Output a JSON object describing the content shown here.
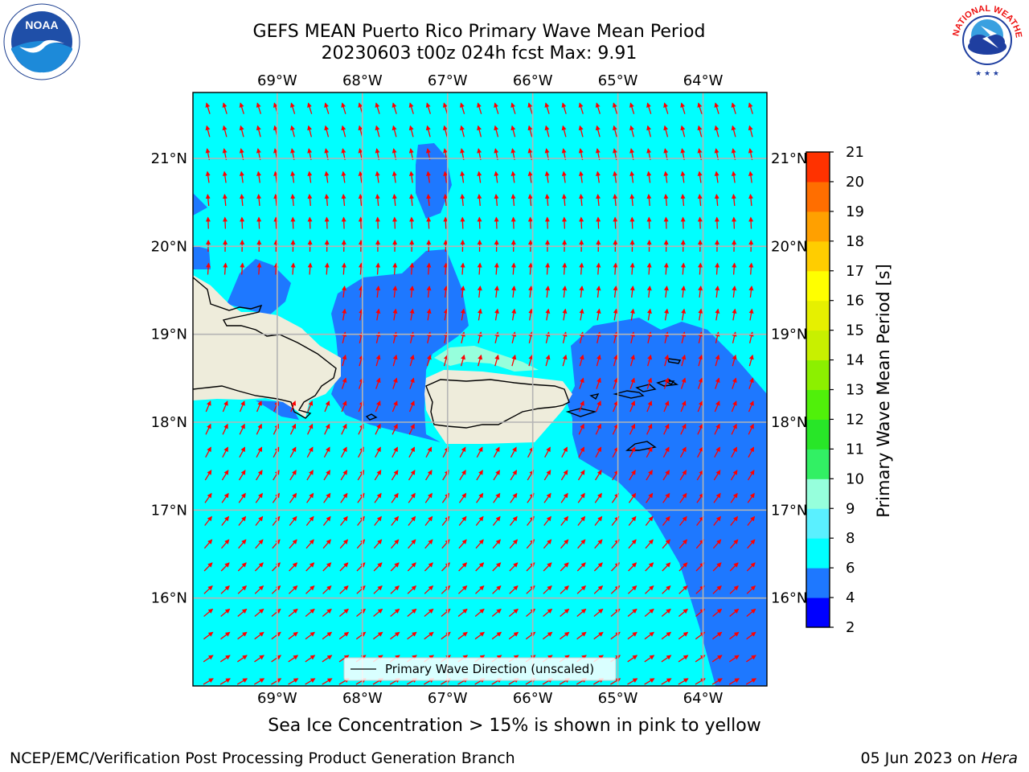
{
  "title": {
    "line1": "GEFS MEAN Puerto Rico Primary Wave Mean Period",
    "line2": "20230603 t00z 024h fcst   Max: 9.91"
  },
  "axes": {
    "lon_labels": [
      "69°W",
      "68°W",
      "67°W",
      "66°W",
      "65°W",
      "64°W"
    ],
    "lat_labels": [
      "21°N",
      "20°N",
      "19°N",
      "18°N",
      "17°N",
      "16°N"
    ],
    "lon_values": [
      -69,
      -68,
      -67,
      -66,
      -65,
      -64
    ],
    "lat_values": [
      21,
      20,
      19,
      18,
      17,
      16
    ],
    "lon_range": [
      -69.99,
      -63.25
    ],
    "lat_range": [
      15.0,
      21.75
    ]
  },
  "legend": {
    "label": "Primary Wave Direction (unscaled)"
  },
  "colorbar": {
    "label": "Primary Wave Mean Period [s]",
    "ticks": [
      "2",
      "4",
      "6",
      "8",
      "9",
      "10",
      "11",
      "12",
      "13",
      "14",
      "15",
      "16",
      "17",
      "18",
      "19",
      "20",
      "21"
    ],
    "colors": [
      "#0000ff",
      "#1e78ff",
      "#00ffff",
      "#5af0ff",
      "#96ffdc",
      "#32f064",
      "#28e628",
      "#50f00a",
      "#8cf000",
      "#c8f000",
      "#e6f000",
      "#ffff00",
      "#ffcd00",
      "#ffa000",
      "#ff6e00",
      "#ff3200",
      "#ff0000"
    ]
  },
  "field_colors": {
    "ocean_light": "#00ffff",
    "ocean_blue": "#1e78ff",
    "land": "#eeecdb",
    "arrow": "#ff0000",
    "grid": "#b4b4b4"
  },
  "note": "Sea Ice Concentration > 15% is shown in pink to yellow",
  "footer": {
    "left": "NCEP/EMC/Verification Post Processing Product Generation Branch",
    "date": "05 Jun 2023 on ",
    "host": "Hera"
  },
  "logos": {
    "left": "NOAA",
    "right": "NATIONAL WEATHER SERVICE"
  }
}
